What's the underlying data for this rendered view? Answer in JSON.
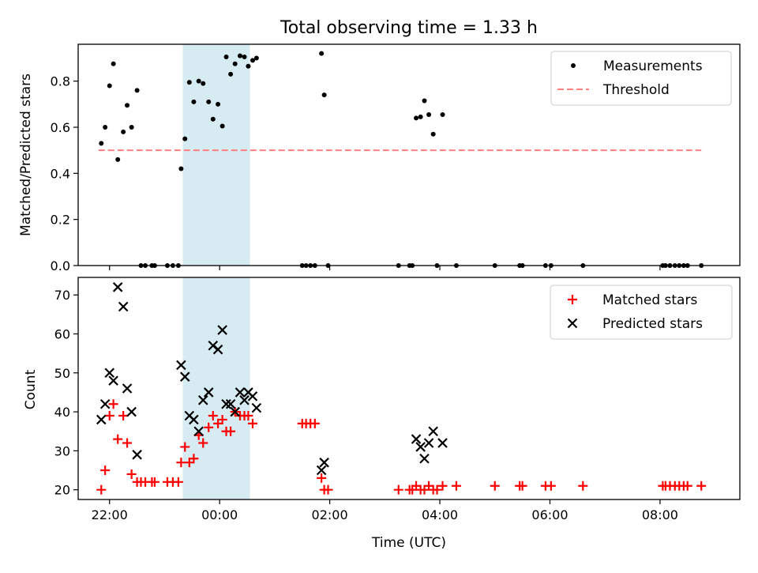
{
  "chart_data": [
    {
      "type": "scatter",
      "title": "Total observing time = 1.33 h",
      "ylabel": "Matched/Predicted stars",
      "xlabel": "",
      "xlim": [
        21.43,
        9.45
      ],
      "ylim": [
        0,
        0.96
      ],
      "yticks": [
        0.0,
        0.2,
        0.4,
        0.6,
        0.8
      ],
      "ytick_labels": [
        "0.0",
        "0.2",
        "0.4",
        "0.6",
        "0.8"
      ],
      "xticks": [
        22,
        0,
        2,
        4,
        6,
        8
      ],
      "legend_position": "top-right",
      "shaded_region": {
        "x_start": 23.33,
        "x_end": 0.55,
        "color": "#add8e6"
      },
      "series": [
        {
          "name": "Measurements",
          "marker": "dot",
          "color": "#000000",
          "points": [
            [
              21.85,
              0.53
            ],
            [
              21.92,
              0.6
            ],
            [
              22.0,
              0.78
            ],
            [
              22.07,
              0.875
            ],
            [
              22.15,
              0.46
            ],
            [
              22.25,
              0.58
            ],
            [
              22.32,
              0.695
            ],
            [
              22.4,
              0.6
            ],
            [
              22.5,
              0.76
            ],
            [
              22.57,
              0.0
            ],
            [
              22.65,
              0.0
            ],
            [
              22.77,
              0.0
            ],
            [
              22.82,
              0.0
            ],
            [
              23.05,
              0.0
            ],
            [
              23.15,
              0.0
            ],
            [
              23.25,
              0.0
            ],
            [
              23.3,
              0.42
            ],
            [
              23.37,
              0.55
            ],
            [
              23.45,
              0.795
            ],
            [
              23.53,
              0.71
            ],
            [
              23.62,
              0.8
            ],
            [
              23.7,
              0.79
            ],
            [
              23.8,
              0.71
            ],
            [
              23.88,
              0.635
            ],
            [
              23.97,
              0.7
            ],
            [
              0.05,
              0.605
            ],
            [
              0.12,
              0.905
            ],
            [
              0.2,
              0.83
            ],
            [
              0.28,
              0.875
            ],
            [
              0.37,
              0.91
            ],
            [
              0.45,
              0.905
            ],
            [
              0.52,
              0.865
            ],
            [
              0.6,
              0.89
            ],
            [
              0.67,
              0.9
            ],
            [
              1.5,
              0.0
            ],
            [
              1.57,
              0.0
            ],
            [
              1.65,
              0.0
            ],
            [
              1.73,
              0.0
            ],
            [
              1.85,
              0.92
            ],
            [
              1.9,
              0.74
            ],
            [
              1.97,
              0.0
            ],
            [
              3.25,
              0.0
            ],
            [
              3.45,
              0.0
            ],
            [
              3.5,
              0.0
            ],
            [
              3.57,
              0.64
            ],
            [
              3.65,
              0.645
            ],
            [
              3.72,
              0.715
            ],
            [
              3.8,
              0.655
            ],
            [
              3.88,
              0.57
            ],
            [
              3.95,
              0.0
            ],
            [
              4.05,
              0.655
            ],
            [
              4.3,
              0.0
            ],
            [
              5.0,
              0.0
            ],
            [
              5.45,
              0.0
            ],
            [
              5.5,
              0.0
            ],
            [
              5.92,
              0.0
            ],
            [
              6.02,
              0.0
            ],
            [
              6.6,
              0.0
            ],
            [
              8.05,
              0.0
            ],
            [
              8.1,
              0.0
            ],
            [
              8.18,
              0.0
            ],
            [
              8.27,
              0.0
            ],
            [
              8.35,
              0.0
            ],
            [
              8.43,
              0.0
            ],
            [
              8.5,
              0.0
            ],
            [
              8.75,
              0.0
            ]
          ]
        },
        {
          "name": "Threshold",
          "type": "line",
          "style": "dashed",
          "color": "#ff7f7f",
          "points": [
            [
              21.8,
              0.5
            ],
            [
              8.75,
              0.5
            ]
          ]
        }
      ]
    },
    {
      "type": "scatter",
      "title": "",
      "xlabel": "Time (UTC)",
      "ylabel": "Count",
      "xlim": [
        21.43,
        9.45
      ],
      "ylim": [
        17.5,
        74.5
      ],
      "yticks": [
        20,
        30,
        40,
        50,
        60,
        70
      ],
      "ytick_labels": [
        "20",
        "30",
        "40",
        "50",
        "60",
        "70"
      ],
      "xticks": [
        22,
        0,
        2,
        4,
        6,
        8
      ],
      "xtick_labels": [
        "22:00",
        "00:00",
        "02:00",
        "04:00",
        "06:00",
        "08:00"
      ],
      "legend_position": "top-right",
      "shaded_region": {
        "x_start": 23.33,
        "x_end": 0.55,
        "color": "#add8e6"
      },
      "series": [
        {
          "name": "Matched stars",
          "marker": "plus",
          "color": "#ff0000",
          "points": [
            [
              21.85,
              20
            ],
            [
              21.92,
              25
            ],
            [
              22.0,
              39
            ],
            [
              22.07,
              42
            ],
            [
              22.15,
              33
            ],
            [
              22.25,
              39
            ],
            [
              22.32,
              32
            ],
            [
              22.4,
              24
            ],
            [
              22.5,
              22
            ],
            [
              22.57,
              22
            ],
            [
              22.65,
              22
            ],
            [
              22.77,
              22
            ],
            [
              22.82,
              22
            ],
            [
              23.05,
              22
            ],
            [
              23.15,
              22
            ],
            [
              23.25,
              22
            ],
            [
              23.3,
              27
            ],
            [
              23.37,
              31
            ],
            [
              23.45,
              27
            ],
            [
              23.53,
              28
            ],
            [
              23.62,
              34
            ],
            [
              23.7,
              32
            ],
            [
              23.8,
              36
            ],
            [
              23.88,
              39
            ],
            [
              23.97,
              37
            ],
            [
              0.05,
              38
            ],
            [
              0.12,
              35
            ],
            [
              0.2,
              35
            ],
            [
              0.28,
              40
            ],
            [
              0.37,
              39
            ],
            [
              0.45,
              39
            ],
            [
              0.52,
              39
            ],
            [
              0.6,
              37
            ],
            [
              1.5,
              37
            ],
            [
              1.57,
              37
            ],
            [
              1.65,
              37
            ],
            [
              1.73,
              37
            ],
            [
              1.85,
              23
            ],
            [
              1.9,
              20
            ],
            [
              1.97,
              20
            ],
            [
              3.25,
              20
            ],
            [
              3.45,
              20
            ],
            [
              3.5,
              20
            ],
            [
              3.57,
              21
            ],
            [
              3.65,
              20
            ],
            [
              3.72,
              20
            ],
            [
              3.8,
              21
            ],
            [
              3.88,
              20
            ],
            [
              3.95,
              20
            ],
            [
              4.05,
              21
            ],
            [
              4.3,
              21
            ],
            [
              5.0,
              21
            ],
            [
              5.45,
              21
            ],
            [
              5.5,
              21
            ],
            [
              5.92,
              21
            ],
            [
              6.02,
              21
            ],
            [
              6.6,
              21
            ],
            [
              8.05,
              21
            ],
            [
              8.1,
              21
            ],
            [
              8.18,
              21
            ],
            [
              8.27,
              21
            ],
            [
              8.35,
              21
            ],
            [
              8.43,
              21
            ],
            [
              8.5,
              21
            ],
            [
              8.75,
              21
            ]
          ]
        },
        {
          "name": "Predicted stars",
          "marker": "x",
          "color": "#000000",
          "points": [
            [
              21.85,
              38
            ],
            [
              21.92,
              42
            ],
            [
              22.0,
              50
            ],
            [
              22.07,
              48
            ],
            [
              22.15,
              72
            ],
            [
              22.25,
              67
            ],
            [
              22.32,
              46
            ],
            [
              22.4,
              40
            ],
            [
              22.5,
              29
            ],
            [
              23.3,
              52
            ],
            [
              23.37,
              49
            ],
            [
              23.45,
              39
            ],
            [
              23.53,
              38
            ],
            [
              23.62,
              35
            ],
            [
              23.7,
              43
            ],
            [
              23.8,
              45
            ],
            [
              23.88,
              57
            ],
            [
              23.97,
              56
            ],
            [
              0.05,
              61
            ],
            [
              0.12,
              42
            ],
            [
              0.2,
              42
            ],
            [
              0.28,
              40
            ],
            [
              0.37,
              45
            ],
            [
              0.45,
              43
            ],
            [
              0.52,
              45
            ],
            [
              0.6,
              44
            ],
            [
              0.67,
              41
            ],
            [
              1.85,
              25
            ],
            [
              1.9,
              27
            ],
            [
              3.57,
              33
            ],
            [
              3.65,
              31
            ],
            [
              3.72,
              28
            ],
            [
              3.8,
              32
            ],
            [
              3.88,
              35
            ],
            [
              4.05,
              32
            ]
          ]
        }
      ]
    }
  ]
}
